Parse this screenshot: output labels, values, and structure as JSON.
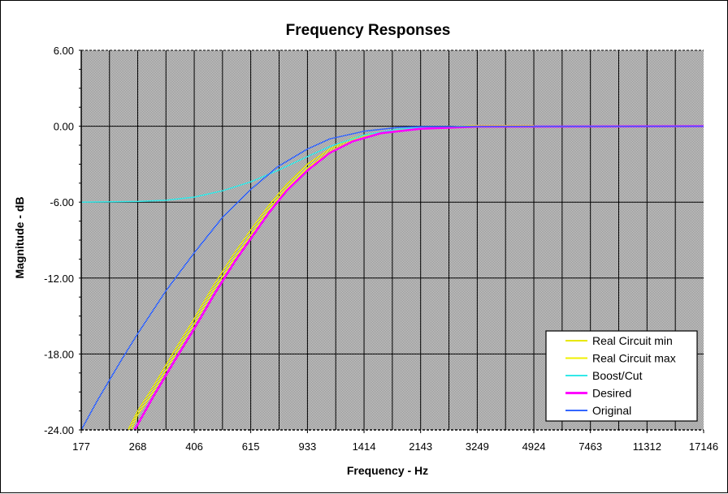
{
  "chart_data": {
    "type": "line",
    "title": "Frequency Responses",
    "xlabel": "Frequency - Hz",
    "ylabel": "Magnitude - dB",
    "x_scale": "log",
    "x_range": [
      177,
      17146
    ],
    "xlim": [
      177,
      17146
    ],
    "ylim": [
      -24,
      6
    ],
    "grid": true,
    "legend_position": "bottom-right",
    "x_tick_labels": [
      "177",
      "268",
      "406",
      "615",
      "933",
      "1414",
      "2143",
      "3249",
      "4924",
      "7463",
      "11312",
      "17146"
    ],
    "x_tick_values": [
      177,
      268,
      406,
      615,
      933,
      1414,
      2143,
      3249,
      4924,
      7463,
      11312,
      17146
    ],
    "y_tick_labels": [
      "6.00",
      "0.00",
      "-6.00",
      "-12.00",
      "-18.00",
      "-24.00"
    ],
    "y_tick_values": [
      6,
      0,
      -6,
      -12,
      -18,
      -24
    ],
    "series": [
      {
        "name": "Real Circuit min",
        "color": "#e8e800",
        "points": [
          [
            250,
            -24
          ],
          [
            268,
            -22.5
          ],
          [
            300,
            -20.6
          ],
          [
            350,
            -17.8
          ],
          [
            406,
            -15.2
          ],
          [
            470,
            -12.5
          ],
          [
            550,
            -9.9
          ],
          [
            615,
            -8.2
          ],
          [
            700,
            -6.3
          ],
          [
            800,
            -4.6
          ],
          [
            933,
            -3.0
          ],
          [
            1100,
            -1.8
          ],
          [
            1300,
            -0.95
          ],
          [
            1600,
            -0.45
          ],
          [
            2143,
            -0.15
          ],
          [
            3249,
            0.05
          ],
          [
            4924,
            0.05
          ]
        ]
      },
      {
        "name": "Real Circuit max",
        "color": "#f0f000",
        "points": [
          [
            255,
            -24
          ],
          [
            268,
            -22.8
          ],
          [
            300,
            -21.0
          ],
          [
            350,
            -18.2
          ],
          [
            406,
            -15.6
          ],
          [
            470,
            -12.9
          ],
          [
            550,
            -10.3
          ],
          [
            615,
            -8.6
          ],
          [
            700,
            -6.6
          ],
          [
            800,
            -4.9
          ],
          [
            933,
            -3.3
          ],
          [
            1100,
            -2.0
          ],
          [
            1300,
            -1.1
          ],
          [
            1600,
            -0.5
          ],
          [
            2143,
            -0.15
          ],
          [
            3249,
            0.03
          ],
          [
            4924,
            0.03
          ]
        ]
      },
      {
        "name": "Boost/Cut",
        "color": "#33e8e8",
        "points": [
          [
            177,
            -6.0
          ],
          [
            268,
            -5.95
          ],
          [
            330,
            -5.85
          ],
          [
            406,
            -5.6
          ],
          [
            500,
            -5.1
          ],
          [
            615,
            -4.4
          ],
          [
            750,
            -3.5
          ],
          [
            933,
            -2.4
          ],
          [
            1100,
            -1.6
          ],
          [
            1414,
            -0.7
          ],
          [
            1800,
            -0.25
          ],
          [
            2143,
            -0.1
          ],
          [
            3249,
            0
          ],
          [
            17146,
            0
          ]
        ]
      },
      {
        "name": "Desired",
        "color": "#ff00ff",
        "points": [
          [
            262,
            -24
          ],
          [
            300,
            -21.4
          ],
          [
            350,
            -18.6
          ],
          [
            406,
            -16.0
          ],
          [
            470,
            -13.3
          ],
          [
            550,
            -10.6
          ],
          [
            615,
            -8.9
          ],
          [
            700,
            -6.9
          ],
          [
            800,
            -5.1
          ],
          [
            933,
            -3.5
          ],
          [
            1100,
            -2.1
          ],
          [
            1300,
            -1.2
          ],
          [
            1600,
            -0.55
          ],
          [
            2143,
            -0.2
          ],
          [
            3249,
            -0.03
          ],
          [
            17146,
            0
          ]
        ]
      },
      {
        "name": "Original",
        "color": "#3366ff",
        "points": [
          [
            177,
            -24
          ],
          [
            200,
            -21.6
          ],
          [
            240,
            -18.3
          ],
          [
            268,
            -16.4
          ],
          [
            330,
            -13.0
          ],
          [
            406,
            -10.0
          ],
          [
            500,
            -7.2
          ],
          [
            615,
            -5.0
          ],
          [
            750,
            -3.2
          ],
          [
            933,
            -1.8
          ],
          [
            1100,
            -1.0
          ],
          [
            1414,
            -0.4
          ],
          [
            1800,
            -0.1
          ],
          [
            2143,
            -0.03
          ],
          [
            17146,
            0
          ]
        ]
      }
    ]
  }
}
